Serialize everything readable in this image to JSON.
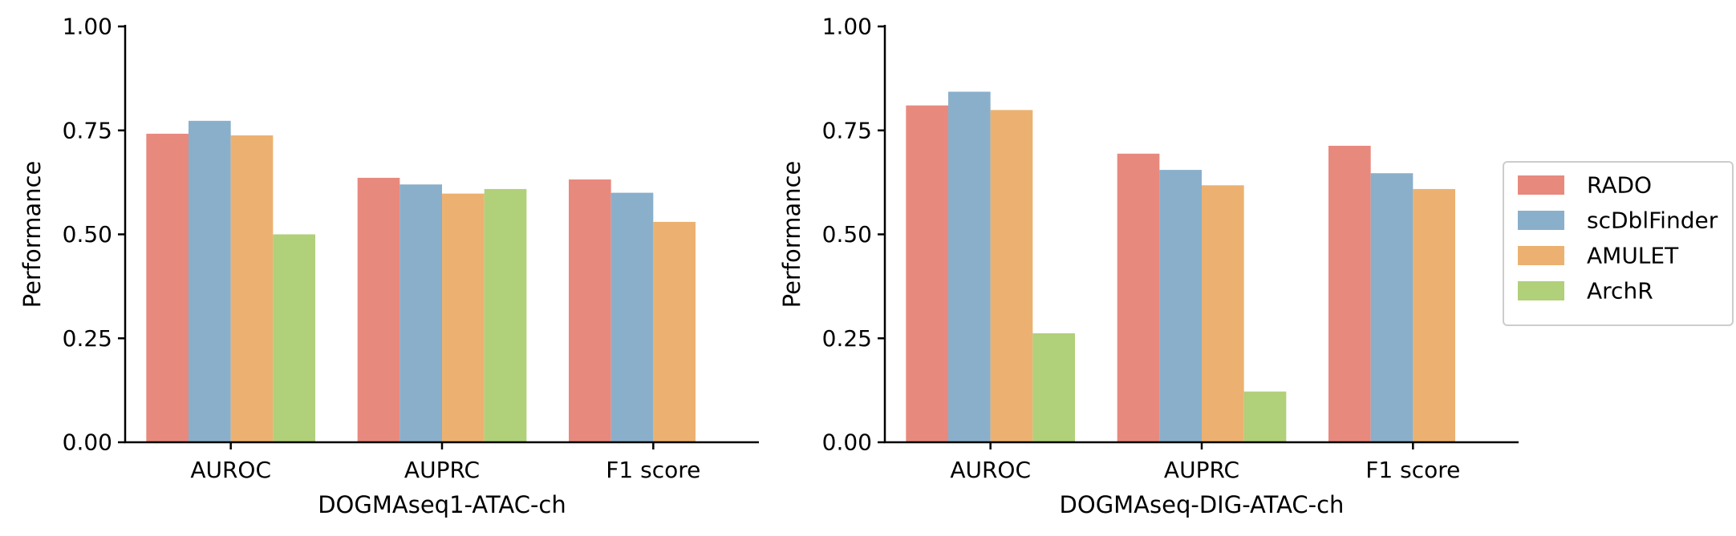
{
  "chart_data": [
    {
      "type": "bar",
      "xlabel": "DOGMAseq1-ATAC-ch",
      "ylabel": "Performance",
      "ylim": [
        0,
        1
      ],
      "yticks": [
        "0.00",
        "0.25",
        "0.50",
        "0.75",
        "1.00"
      ],
      "categories": [
        "AUROC",
        "AUPRC",
        "F1 score"
      ],
      "grid": false,
      "legend": false,
      "series": [
        {
          "name": "RADO",
          "color": "#e8897e",
          "values": [
            0.742,
            0.636,
            0.632
          ]
        },
        {
          "name": "scDblFinder",
          "color": "#8aafcb",
          "values": [
            0.773,
            0.62,
            0.6
          ]
        },
        {
          "name": "AMULET",
          "color": "#ecb170",
          "values": [
            0.738,
            0.598,
            0.53
          ]
        },
        {
          "name": "ArchR",
          "color": "#b0d07a",
          "values": [
            0.5,
            0.609,
            null
          ]
        }
      ]
    },
    {
      "type": "bar",
      "xlabel": "DOGMAseq-DIG-ATAC-ch",
      "ylabel": "Performance",
      "ylim": [
        0,
        1
      ],
      "yticks": [
        "0.00",
        "0.25",
        "0.50",
        "0.75",
        "1.00"
      ],
      "categories": [
        "AUROC",
        "AUPRC",
        "F1 score"
      ],
      "grid": false,
      "legend": "outside-right",
      "series": [
        {
          "name": "RADO",
          "color": "#e8897e",
          "values": [
            0.81,
            0.694,
            0.713
          ]
        },
        {
          "name": "scDblFinder",
          "color": "#8aafcb",
          "values": [
            0.843,
            0.655,
            0.647
          ]
        },
        {
          "name": "AMULET",
          "color": "#ecb170",
          "values": [
            0.799,
            0.618,
            0.609
          ]
        },
        {
          "name": "ArchR",
          "color": "#b0d07a",
          "values": [
            0.262,
            0.122,
            null
          ]
        }
      ]
    }
  ]
}
